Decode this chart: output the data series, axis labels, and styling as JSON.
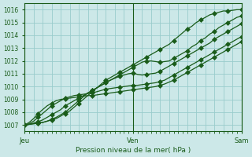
{
  "title": "Pression niveau de la mer( hPa )",
  "ylabel_values": [
    1007,
    1008,
    1009,
    1010,
    1011,
    1012,
    1013,
    1014,
    1015,
    1016
  ],
  "ylim": [
    1006.5,
    1016.5
  ],
  "xlim": [
    0,
    48
  ],
  "xtick_positions": [
    0,
    24,
    48
  ],
  "xtick_labels": [
    "Jeu",
    "Ven",
    "Sam"
  ],
  "bg_color": "#cce8e8",
  "grid_color": "#99cccc",
  "line_color": "#1a5c1a",
  "series": [
    [
      1007.0,
      1007.05,
      1007.1,
      1007.15,
      1007.2,
      1007.3,
      1007.4,
      1007.5,
      1007.7,
      1007.9,
      1008.1,
      1008.4,
      1008.7,
      1009.0,
      1009.3,
      1009.6,
      1009.9,
      1010.2,
      1010.5,
      1010.7,
      1010.9,
      1011.1,
      1011.3,
      1011.5,
      1011.7,
      1011.9,
      1012.1,
      1012.3,
      1012.5,
      1012.7,
      1012.9,
      1013.1,
      1013.3,
      1013.6,
      1013.9,
      1014.2,
      1014.5,
      1014.7,
      1015.0,
      1015.2,
      1015.4,
      1015.6,
      1015.7,
      1015.8,
      1015.9,
      1015.9,
      1015.95,
      1016.0,
      1016.0
    ],
    [
      1007.0,
      1007.05,
      1007.1,
      1007.15,
      1007.2,
      1007.3,
      1007.45,
      1007.6,
      1007.8,
      1008.0,
      1008.3,
      1008.6,
      1008.9,
      1009.2,
      1009.5,
      1009.7,
      1009.9,
      1010.1,
      1010.3,
      1010.5,
      1010.7,
      1010.9,
      1011.1,
      1011.3,
      1011.5,
      1011.7,
      1011.9,
      1012.0,
      1012.0,
      1011.95,
      1011.9,
      1011.95,
      1012.0,
      1012.2,
      1012.4,
      1012.6,
      1012.8,
      1013.1,
      1013.3,
      1013.6,
      1013.8,
      1014.1,
      1014.3,
      1014.6,
      1014.8,
      1015.0,
      1015.2,
      1015.4,
      1015.5
    ],
    [
      1007.0,
      1007.05,
      1007.15,
      1007.25,
      1007.4,
      1007.6,
      1007.8,
      1008.0,
      1008.2,
      1008.5,
      1008.7,
      1008.9,
      1009.1,
      1009.3,
      1009.5,
      1009.7,
      1009.9,
      1010.1,
      1010.3,
      1010.5,
      1010.65,
      1010.8,
      1010.9,
      1011.0,
      1011.05,
      1010.95,
      1010.9,
      1010.95,
      1011.0,
      1011.05,
      1011.2,
      1011.4,
      1011.6,
      1011.8,
      1012.0,
      1012.2,
      1012.4,
      1012.6,
      1012.8,
      1013.0,
      1013.2,
      1013.4,
      1013.7,
      1013.9,
      1014.1,
      1014.3,
      1014.5,
      1014.7,
      1014.9
    ],
    [
      1007.0,
      1007.1,
      1007.3,
      1007.6,
      1007.9,
      1008.2,
      1008.5,
      1008.7,
      1008.9,
      1009.1,
      1009.2,
      1009.3,
      1009.35,
      1009.4,
      1009.45,
      1009.5,
      1009.6,
      1009.7,
      1009.8,
      1009.85,
      1009.9,
      1009.95,
      1010.0,
      1010.05,
      1010.1,
      1010.1,
      1010.15,
      1010.2,
      1010.25,
      1010.3,
      1010.4,
      1010.5,
      1010.7,
      1010.9,
      1011.1,
      1011.3,
      1011.5,
      1011.7,
      1011.9,
      1012.1,
      1012.3,
      1012.5,
      1012.7,
      1012.9,
      1013.1,
      1013.3,
      1013.5,
      1013.7,
      1013.9
    ],
    [
      1007.0,
      1007.2,
      1007.5,
      1007.9,
      1008.2,
      1008.5,
      1008.7,
      1008.9,
      1009.0,
      1009.05,
      1009.1,
      1009.15,
      1009.2,
      1009.25,
      1009.3,
      1009.3,
      1009.35,
      1009.4,
      1009.45,
      1009.5,
      1009.55,
      1009.6,
      1009.65,
      1009.7,
      1009.75,
      1009.8,
      1009.85,
      1009.9,
      1009.95,
      1010.0,
      1010.1,
      1010.2,
      1010.35,
      1010.5,
      1010.7,
      1010.9,
      1011.1,
      1011.3,
      1011.5,
      1011.7,
      1011.9,
      1012.1,
      1012.3,
      1012.5,
      1012.7,
      1012.9,
      1013.1,
      1013.3,
      1013.5
    ]
  ],
  "n_points": 49,
  "marker_every": 3,
  "marker_size": 3.0,
  "linewidth": 0.9
}
